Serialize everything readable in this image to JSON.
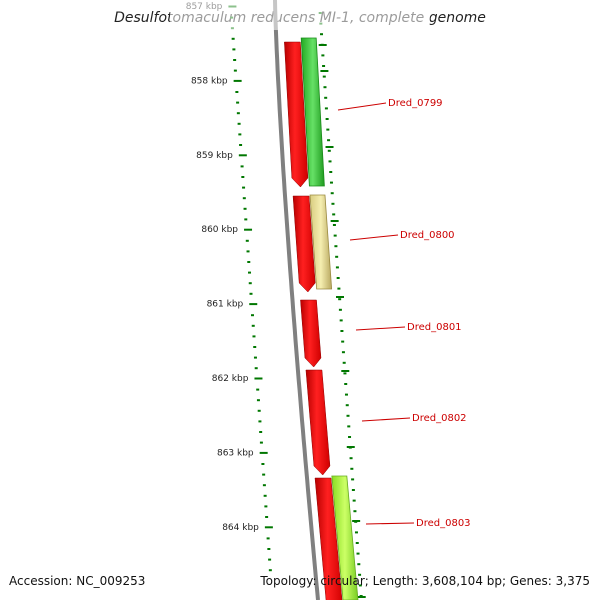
{
  "title": "Desulfotomaculum reducens MI-1, complete genome",
  "footer": {
    "accession": "Accession: NC_009253",
    "summary": "Topology: circular; Length: 3,608,104 bp; Genes: 3,375"
  },
  "ticks": [
    {
      "label": "857 kbp",
      "kbp": 857
    },
    {
      "label": "858 kbp",
      "kbp": 858
    },
    {
      "label": "859 kbp",
      "kbp": 859
    },
    {
      "label": "860 kbp",
      "kbp": 860
    },
    {
      "label": "861 kbp",
      "kbp": 861
    },
    {
      "label": "862 kbp",
      "kbp": 862
    },
    {
      "label": "863 kbp",
      "kbp": 863
    },
    {
      "label": "864 kbp",
      "kbp": 864
    }
  ],
  "genes": [
    {
      "label": "Dred_0799"
    },
    {
      "label": "Dred_0800"
    },
    {
      "label": "Dred_0801"
    },
    {
      "label": "Dred_0802"
    },
    {
      "label": "Dred_0803"
    }
  ],
  "colors": {
    "backbone": "#808080",
    "cds": "#ff0000",
    "label": "#cc0000",
    "tick": "#007700",
    "feature_green": "#33cc33",
    "feature_khaki": "#eee29a",
    "feature_lime": "#99ee33",
    "feature_olive": "#7a8a10"
  }
}
